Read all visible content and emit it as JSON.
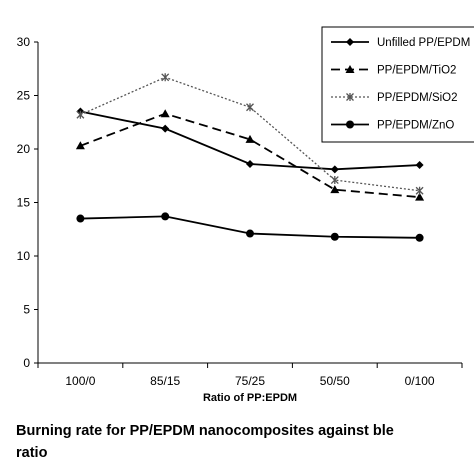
{
  "chart_data": {
    "type": "line",
    "categories": [
      "100/0",
      "85/15",
      "75/25",
      "50/50",
      "0/100"
    ],
    "xlabel": "Ratio of PP:EPDM",
    "ylim": [
      0,
      30
    ],
    "yticks": [
      "0",
      "5",
      "10",
      "15",
      "20",
      "25",
      "30"
    ],
    "grid": false,
    "legend_position": "top-right",
    "series": [
      {
        "name": "Unfilled PP/EPDM",
        "values": [
          23.5,
          21.9,
          18.6,
          18.1,
          18.5
        ],
        "color": "#000000",
        "style": "solid",
        "marker": "diamond"
      },
      {
        "name": "PP/EPDM/TiO2",
        "values": [
          20.3,
          23.3,
          20.9,
          16.2,
          15.5
        ],
        "color": "#000000",
        "style": "dashed",
        "marker": "triangle"
      },
      {
        "name": "PP/EPDM/SiO2",
        "values": [
          23.2,
          26.7,
          23.9,
          17.1,
          16.1
        ],
        "color": "#555555",
        "style": "dotted",
        "marker": "star"
      },
      {
        "name": "PP/EPDM/ZnO",
        "values": [
          13.5,
          13.7,
          12.1,
          11.8,
          11.7
        ],
        "color": "#000000",
        "style": "solid",
        "marker": "circle"
      }
    ]
  },
  "caption": {
    "line1": "Burning rate for PP/EPDM nanocomposites against ble",
    "line2": "ratio"
  }
}
